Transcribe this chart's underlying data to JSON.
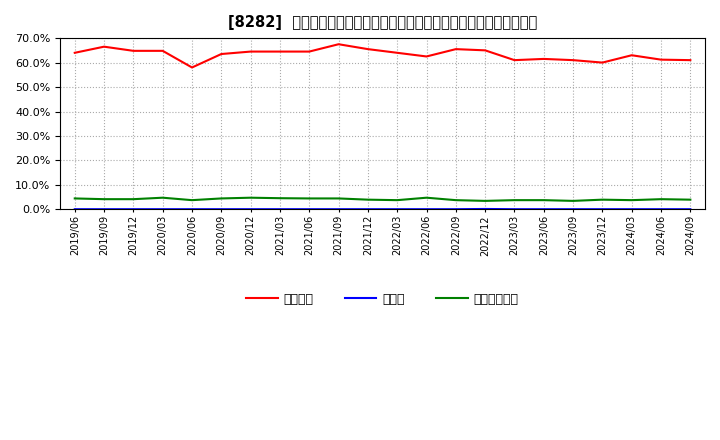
{
  "title": "[8282]  自己資本、のれん、繰延税金資産の総資産に対する比率の推移",
  "x_labels": [
    "2019/06",
    "2019/09",
    "2019/12",
    "2020/03",
    "2020/06",
    "2020/09",
    "2020/12",
    "2021/03",
    "2021/06",
    "2021/09",
    "2021/12",
    "2022/03",
    "2022/06",
    "2022/09",
    "2022/12",
    "2023/03",
    "2023/06",
    "2023/09",
    "2023/12",
    "2024/03",
    "2024/06",
    "2024/09"
  ],
  "equity": [
    64.0,
    66.5,
    64.8,
    64.8,
    58.0,
    63.5,
    64.5,
    64.5,
    64.5,
    67.5,
    65.5,
    64.0,
    62.5,
    65.5,
    65.0,
    61.0,
    61.5,
    61.0,
    60.0,
    63.0,
    61.2,
    61.0
  ],
  "noren": [
    0.1,
    0.1,
    0.1,
    0.1,
    0.1,
    0.1,
    0.1,
    0.1,
    0.1,
    0.1,
    0.1,
    0.1,
    0.1,
    0.1,
    0.2,
    0.1,
    0.1,
    0.1,
    0.1,
    0.1,
    0.1,
    0.1
  ],
  "deferred_tax": [
    4.5,
    4.2,
    4.2,
    4.8,
    3.8,
    4.5,
    4.8,
    4.6,
    4.5,
    4.5,
    4.0,
    3.8,
    4.8,
    3.8,
    3.5,
    3.8,
    3.8,
    3.5,
    4.0,
    3.8,
    4.2,
    4.0
  ],
  "equity_color": "#ff0000",
  "noren_color": "#0000ff",
  "deferred_tax_color": "#008000",
  "ylim": [
    0.0,
    70.0
  ],
  "yticks": [
    0.0,
    10.0,
    20.0,
    30.0,
    40.0,
    50.0,
    60.0,
    70.0
  ],
  "legend_labels": [
    "自己資本",
    "のれん",
    "繰延税金資産"
  ],
  "background_color": "#ffffff",
  "plot_bg_color": "#ffffff",
  "grid_color": "#aaaaaa",
  "title_prefix": "[8282]  ",
  "title_jp": "自己資本、のれん、繰延税金資産の総資産に対する比率の推移"
}
